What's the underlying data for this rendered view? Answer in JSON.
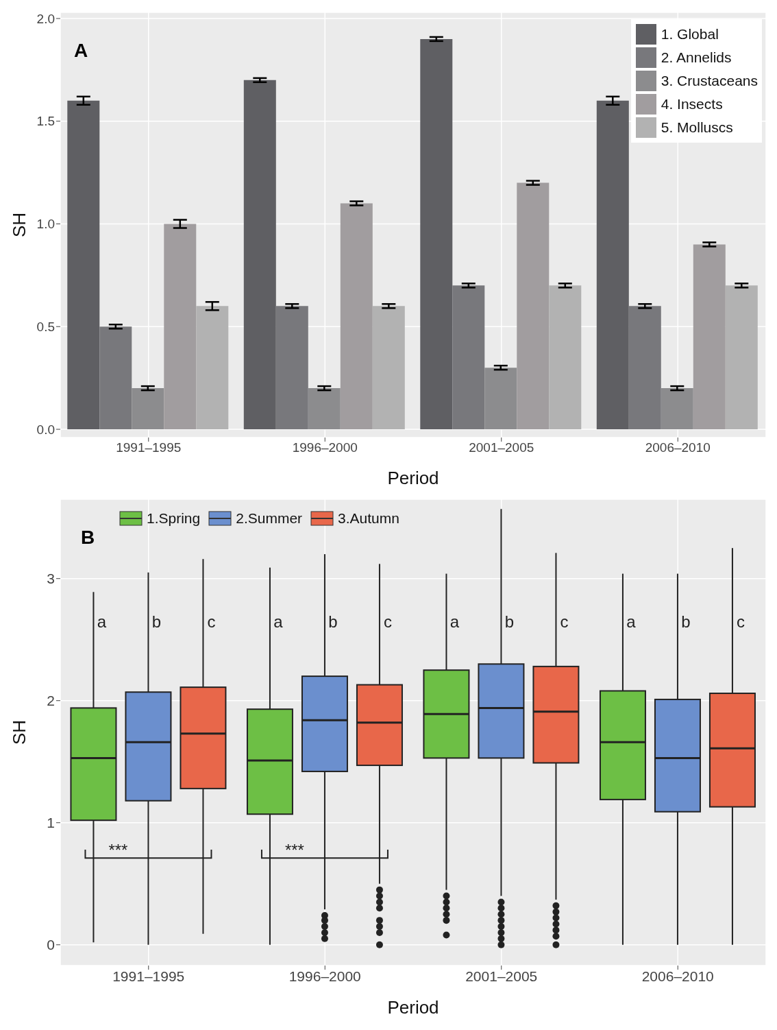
{
  "chart_data": [
    {
      "type": "bar",
      "annotations": [
        "A"
      ],
      "xlabel": "Period",
      "ylabel": "SH",
      "categories": [
        "1991–1995",
        "1996–2000",
        "2001–2005",
        "2006–2010"
      ],
      "series": [
        {
          "name": "1. Global",
          "color": "#5f5f63",
          "values": [
            1.6,
            1.7,
            1.9,
            1.6
          ],
          "errors": [
            0.02,
            0.01,
            0.01,
            0.02
          ]
        },
        {
          "name": "2. Annelids",
          "color": "#78787c",
          "values": [
            0.5,
            0.6,
            0.7,
            0.6
          ],
          "errors": [
            0.01,
            0.01,
            0.01,
            0.01
          ]
        },
        {
          "name": "3. Crustaceans",
          "color": "#8c8c8e",
          "values": [
            0.2,
            0.2,
            0.3,
            0.2
          ],
          "errors": [
            0.01,
            0.01,
            0.01,
            0.01
          ]
        },
        {
          "name": "4. Insects",
          "color": "#a19d9f",
          "values": [
            1.0,
            1.1,
            1.2,
            0.9
          ],
          "errors": [
            0.02,
            0.01,
            0.01,
            0.01
          ]
        },
        {
          "name": "5. Molluscs",
          "color": "#b2b2b2",
          "values": [
            0.6,
            0.6,
            0.7,
            0.7
          ],
          "errors": [
            0.02,
            0.01,
            0.01,
            0.01
          ]
        }
      ],
      "ylim": [
        -0.04,
        2.03
      ],
      "yticks": [
        {
          "value": 0,
          "label": "0.0"
        },
        {
          "value": 0.5,
          "label": "0.5"
        },
        {
          "value": 1,
          "label": "1.0"
        },
        {
          "value": 1.5,
          "label": "1.5"
        },
        {
          "value": 2,
          "label": "2.0"
        }
      ],
      "grid": true,
      "legend": "top right"
    },
    {
      "type": "box",
      "annotations": [
        "B",
        "a",
        "b",
        "c",
        "a",
        "b",
        "c",
        "a",
        "b",
        "c",
        "a",
        "b",
        "c",
        "***",
        "***"
      ],
      "xlabel": "Period",
      "ylabel": "SH",
      "categories": [
        "1991–1995",
        "1996–2000",
        "2001–2005",
        "2006–2010"
      ],
      "series": [
        {
          "name": "1.Spring",
          "color": "#6dbf45",
          "boxes": [
            {
              "low": 0.02,
              "q1": 1.02,
              "median": 1.53,
              "q3": 1.94,
              "high": 2.89
            },
            {
              "low": 0,
              "q1": 1.07,
              "median": 1.51,
              "q3": 1.93,
              "high": 3.09
            },
            {
              "low": 0.45,
              "q1": 1.53,
              "median": 1.89,
              "q3": 2.25,
              "high": 3.04,
              "outliers": [
                0.4,
                0.35,
                0.3,
                0.25,
                0.2,
                0.08
              ]
            },
            {
              "low": 0,
              "q1": 1.19,
              "median": 1.66,
              "q3": 2.08,
              "high": 3.04
            }
          ]
        },
        {
          "name": "2.Summer",
          "color": "#6b8fce",
          "boxes": [
            {
              "low": 0,
              "q1": 1.18,
              "median": 1.66,
              "q3": 2.07,
              "high": 3.05
            },
            {
              "low": 0.29,
              "q1": 1.42,
              "median": 1.84,
              "q3": 2.2,
              "high": 3.2,
              "outliers": [
                0.24,
                0.2,
                0.15,
                0.1,
                0.05
              ]
            },
            {
              "low": 0.4,
              "q1": 1.53,
              "median": 1.94,
              "q3": 2.3,
              "high": 3.57,
              "outliers": [
                0.35,
                0.3,
                0.25,
                0.2,
                0.15,
                0.1,
                0.05,
                0.0
              ]
            },
            {
              "low": 0,
              "q1": 1.09,
              "median": 1.53,
              "q3": 2.01,
              "high": 3.04
            }
          ]
        },
        {
          "name": "3.Autumn",
          "color": "#e8674a",
          "boxes": [
            {
              "low": 0.09,
              "q1": 1.28,
              "median": 1.73,
              "q3": 2.11,
              "high": 3.16
            },
            {
              "low": 0.5,
              "q1": 1.47,
              "median": 1.82,
              "q3": 2.13,
              "high": 3.12,
              "outliers": [
                0.45,
                0.4,
                0.35,
                0.3,
                0.2,
                0.15,
                0.1,
                0.0
              ]
            },
            {
              "low": 0.37,
              "q1": 1.49,
              "median": 1.91,
              "q3": 2.28,
              "high": 3.21,
              "outliers": [
                0.32,
                0.27,
                0.22,
                0.17,
                0.12,
                0.07,
                0.0
              ]
            },
            {
              "low": 0,
              "q1": 1.13,
              "median": 1.61,
              "q3": 2.06,
              "high": 3.25
            }
          ]
        }
      ],
      "ylim": [
        -0.17,
        3.65
      ],
      "yticks": [
        0,
        1,
        2,
        3
      ],
      "grid": true,
      "legend": "top left"
    }
  ]
}
